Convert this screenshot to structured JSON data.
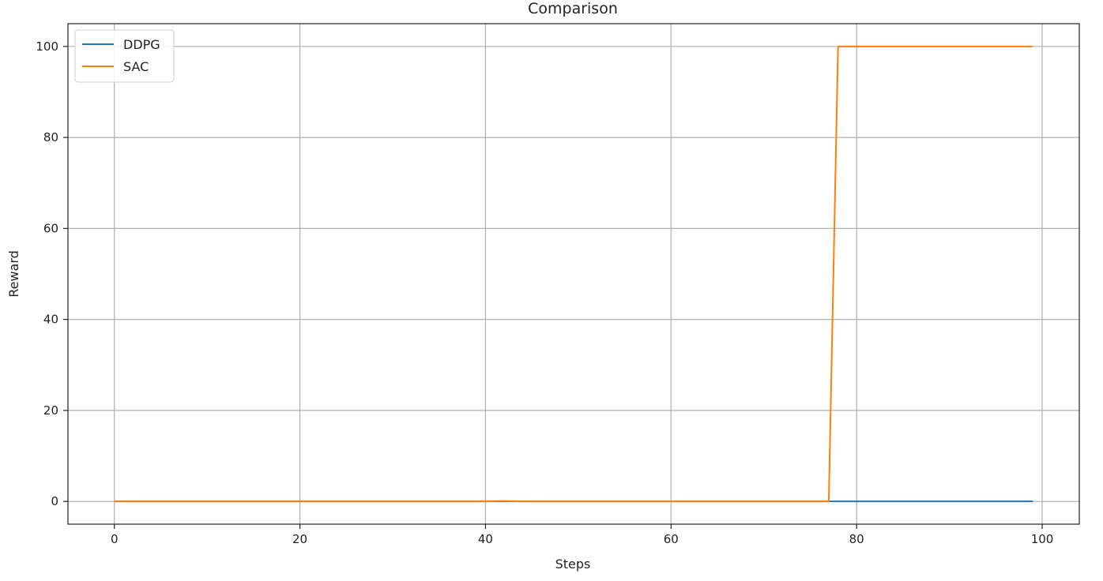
{
  "chart_data": {
    "type": "line",
    "title": "Comparison",
    "xlabel": "Steps",
    "ylabel": "Reward",
    "xlim": [
      -5,
      104
    ],
    "ylim": [
      -5,
      105
    ],
    "xticks": [
      0,
      20,
      40,
      60,
      80,
      100
    ],
    "yticks": [
      0,
      20,
      40,
      60,
      80,
      100
    ],
    "grid": true,
    "legend_position": "top-left",
    "series": [
      {
        "name": "DDPG",
        "color": "#1f77b4",
        "x": [
          0,
          99
        ],
        "y": [
          0,
          0
        ]
      },
      {
        "name": "SAC",
        "color": "#ff7f0e",
        "x": [
          0,
          40,
          42,
          44,
          77,
          78,
          99
        ],
        "y": [
          0,
          0,
          0.1,
          0,
          0,
          100,
          100
        ]
      }
    ]
  }
}
